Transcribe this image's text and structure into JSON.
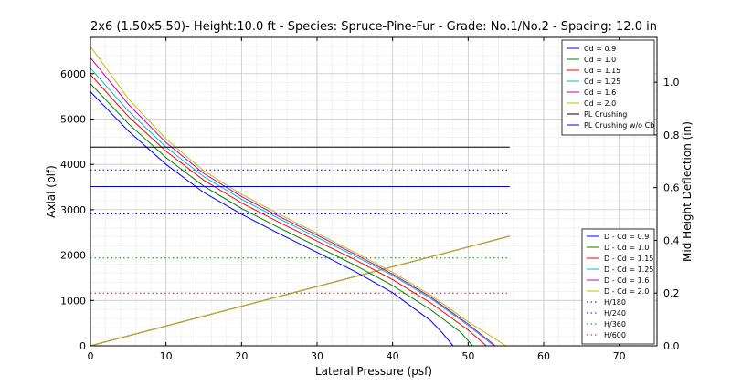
{
  "chart_data": {
    "type": "line",
    "title": "2x6 (1.50x5.50)- Height:10.0 ft - Species: Spruce-Pine-Fur - Grade: No.1/No.2 - Spacing: 12.0 in",
    "xlabel": "Lateral Pressure (psf)",
    "ylabel": "Axial (plf)",
    "y2label": "Mid Height Deflection (in)",
    "xlim": [
      0,
      75
    ],
    "ylim": [
      0,
      6800
    ],
    "y2lim": [
      0,
      1.17
    ],
    "x_ticks": [
      0,
      10,
      20,
      30,
      40,
      50,
      60,
      70
    ],
    "y_ticks": [
      0,
      1000,
      2000,
      3000,
      4000,
      5000,
      6000
    ],
    "y2_ticks": [
      "0.0",
      "0.2",
      "0.4",
      "0.6",
      "0.8",
      "1.0"
    ],
    "grid": true,
    "axial_series": [
      {
        "name": "Cd = 0.9",
        "color": "#0000ff",
        "points": [
          [
            0,
            5600
          ],
          [
            5,
            4740
          ],
          [
            10,
            4000
          ],
          [
            15,
            3380
          ],
          [
            20,
            2900
          ],
          [
            25,
            2470
          ],
          [
            30,
            2060
          ],
          [
            35,
            1640
          ],
          [
            40,
            1170
          ],
          [
            45,
            560
          ],
          [
            46.5,
            300
          ],
          [
            48,
            0
          ]
        ]
      },
      {
        "name": "Cd = 1.0",
        "color": "#008000",
        "points": [
          [
            0,
            5780
          ],
          [
            5,
            4900
          ],
          [
            10,
            4150
          ],
          [
            15,
            3520
          ],
          [
            20,
            3030
          ],
          [
            25,
            2600
          ],
          [
            30,
            2190
          ],
          [
            35,
            1780
          ],
          [
            40,
            1330
          ],
          [
            45,
            800
          ],
          [
            49,
            300
          ],
          [
            50.6,
            0
          ]
        ]
      },
      {
        "name": "Cd = 1.15",
        "color": "#ff0000",
        "points": [
          [
            0,
            5980
          ],
          [
            5,
            5060
          ],
          [
            10,
            4290
          ],
          [
            15,
            3650
          ],
          [
            20,
            3150
          ],
          [
            25,
            2720
          ],
          [
            30,
            2310
          ],
          [
            35,
            1900
          ],
          [
            40,
            1460
          ],
          [
            45,
            950
          ],
          [
            50,
            350
          ],
          [
            52.4,
            0
          ]
        ]
      },
      {
        "name": "Cd = 1.25",
        "color": "#00bfbf",
        "points": [
          [
            0,
            6120
          ],
          [
            5,
            5180
          ],
          [
            10,
            4380
          ],
          [
            15,
            3730
          ],
          [
            20,
            3230
          ],
          [
            25,
            2800
          ],
          [
            30,
            2390
          ],
          [
            35,
            1980
          ],
          [
            40,
            1550
          ],
          [
            45,
            1050
          ],
          [
            50,
            450
          ],
          [
            53.4,
            0
          ]
        ]
      },
      {
        "name": "Cd = 1.6",
        "color": "#bf00bf",
        "points": [
          [
            0,
            6350
          ],
          [
            5,
            5330
          ],
          [
            10,
            4480
          ],
          [
            15,
            3800
          ],
          [
            20,
            3290
          ],
          [
            25,
            2850
          ],
          [
            30,
            2440
          ],
          [
            35,
            2020
          ],
          [
            40,
            1580
          ],
          [
            45,
            1080
          ],
          [
            50,
            480
          ],
          [
            53.6,
            0
          ]
        ]
      },
      {
        "name": "Cd = 2.0",
        "color": "#bfbf00",
        "points": [
          [
            0,
            6600
          ],
          [
            5,
            5450
          ],
          [
            10,
            4560
          ],
          [
            15,
            3860
          ],
          [
            20,
            3340
          ],
          [
            25,
            2900
          ],
          [
            30,
            2480
          ],
          [
            35,
            2060
          ],
          [
            40,
            1620
          ],
          [
            45,
            1120
          ],
          [
            50,
            530
          ],
          [
            55,
            0
          ]
        ]
      },
      {
        "name": "PL Crushing",
        "color": "#000000",
        "points": [
          [
            0,
            4380
          ],
          [
            55.5,
            4380
          ]
        ]
      },
      {
        "name": "PL Crushing w/o Cb",
        "color": "#0000ff",
        "points": [
          [
            0,
            3510
          ],
          [
            55.5,
            3510
          ]
        ]
      }
    ],
    "deflection_series": [
      {
        "name": "D - Cd = 0.9",
        "color": "#0000ff",
        "points": [
          [
            0,
            0
          ],
          [
            55.5,
            0.416
          ]
        ]
      },
      {
        "name": "D - Cd = 1.0",
        "color": "#008000",
        "points": [
          [
            0,
            0
          ],
          [
            55.5,
            0.416
          ]
        ]
      },
      {
        "name": "D - Cd = 1.15",
        "color": "#ff0000",
        "points": [
          [
            0,
            0
          ],
          [
            55.5,
            0.416
          ]
        ]
      },
      {
        "name": "D - Cd = 1.25",
        "color": "#00bfbf",
        "points": [
          [
            0,
            0
          ],
          [
            55.5,
            0.416
          ]
        ]
      },
      {
        "name": "D - Cd = 1.6",
        "color": "#bf00bf",
        "points": [
          [
            0,
            0
          ],
          [
            55.5,
            0.416
          ]
        ]
      },
      {
        "name": "D - Cd = 2.0",
        "color": "#bfbf00",
        "points": [
          [
            0,
            0
          ],
          [
            55.5,
            0.416
          ]
        ]
      }
    ],
    "limit_series": [
      {
        "name": "H/180",
        "color": "#00005f",
        "value": 0.667
      },
      {
        "name": "H/240",
        "color": "#0000ff",
        "value": 0.5
      },
      {
        "name": "H/360",
        "color": "#008000",
        "value": 0.333
      },
      {
        "name": "H/600",
        "color": "#ff0000",
        "value": 0.2
      }
    ],
    "limit_extent": [
      0,
      55.5
    ],
    "legend_axial_position": "upper-right",
    "legend_deflection_position": "lower-right"
  }
}
